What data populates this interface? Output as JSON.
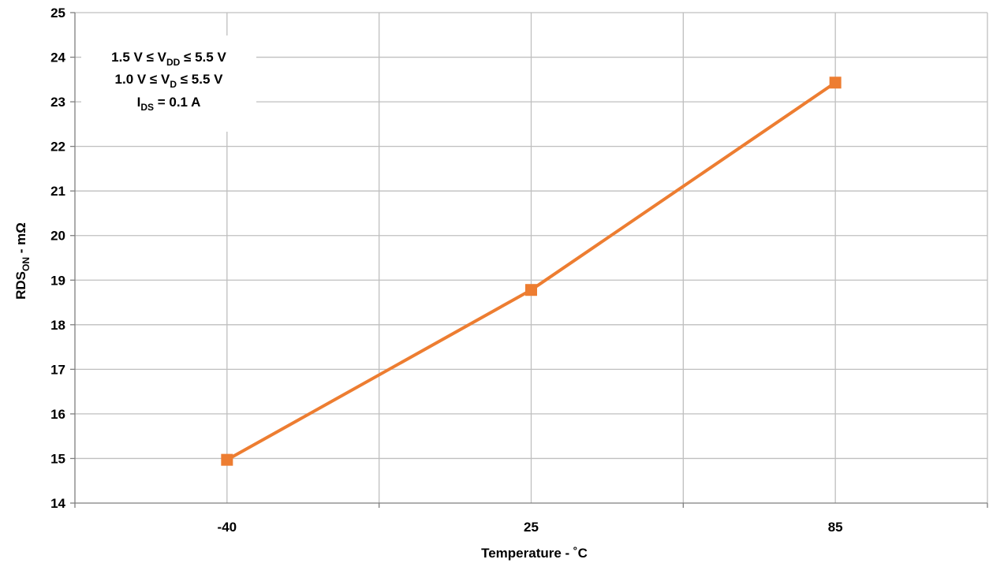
{
  "chart_data": {
    "type": "line",
    "categories": [
      "-40",
      "25",
      "85"
    ],
    "series": [
      {
        "values": [
          14.97,
          18.78,
          23.43
        ],
        "color": "#ed7d31",
        "marker": "square"
      }
    ],
    "xlabel": "Temperature - ˚C",
    "ylabel": {
      "base": "RDS",
      "sub": "ON",
      "suffix": " - mΩ"
    },
    "ylim": [
      14,
      25
    ],
    "yticks": [
      14,
      15,
      16,
      17,
      18,
      19,
      20,
      21,
      22,
      23,
      24,
      25
    ],
    "grid": true,
    "annotation": [
      [
        {
          "t": "1.5 V ≤ V"
        },
        {
          "t": "DD",
          "sub": true
        },
        {
          "t": " ≤ 5.5 V"
        }
      ],
      [
        {
          "t": "1.0 V ≤ V"
        },
        {
          "t": "D",
          "sub": true
        },
        {
          "t": " ≤ 5.5 V"
        }
      ],
      [
        {
          "t": "I"
        },
        {
          "t": "DS",
          "sub": true
        },
        {
          "t": " = 0.1 A"
        }
      ]
    ]
  }
}
